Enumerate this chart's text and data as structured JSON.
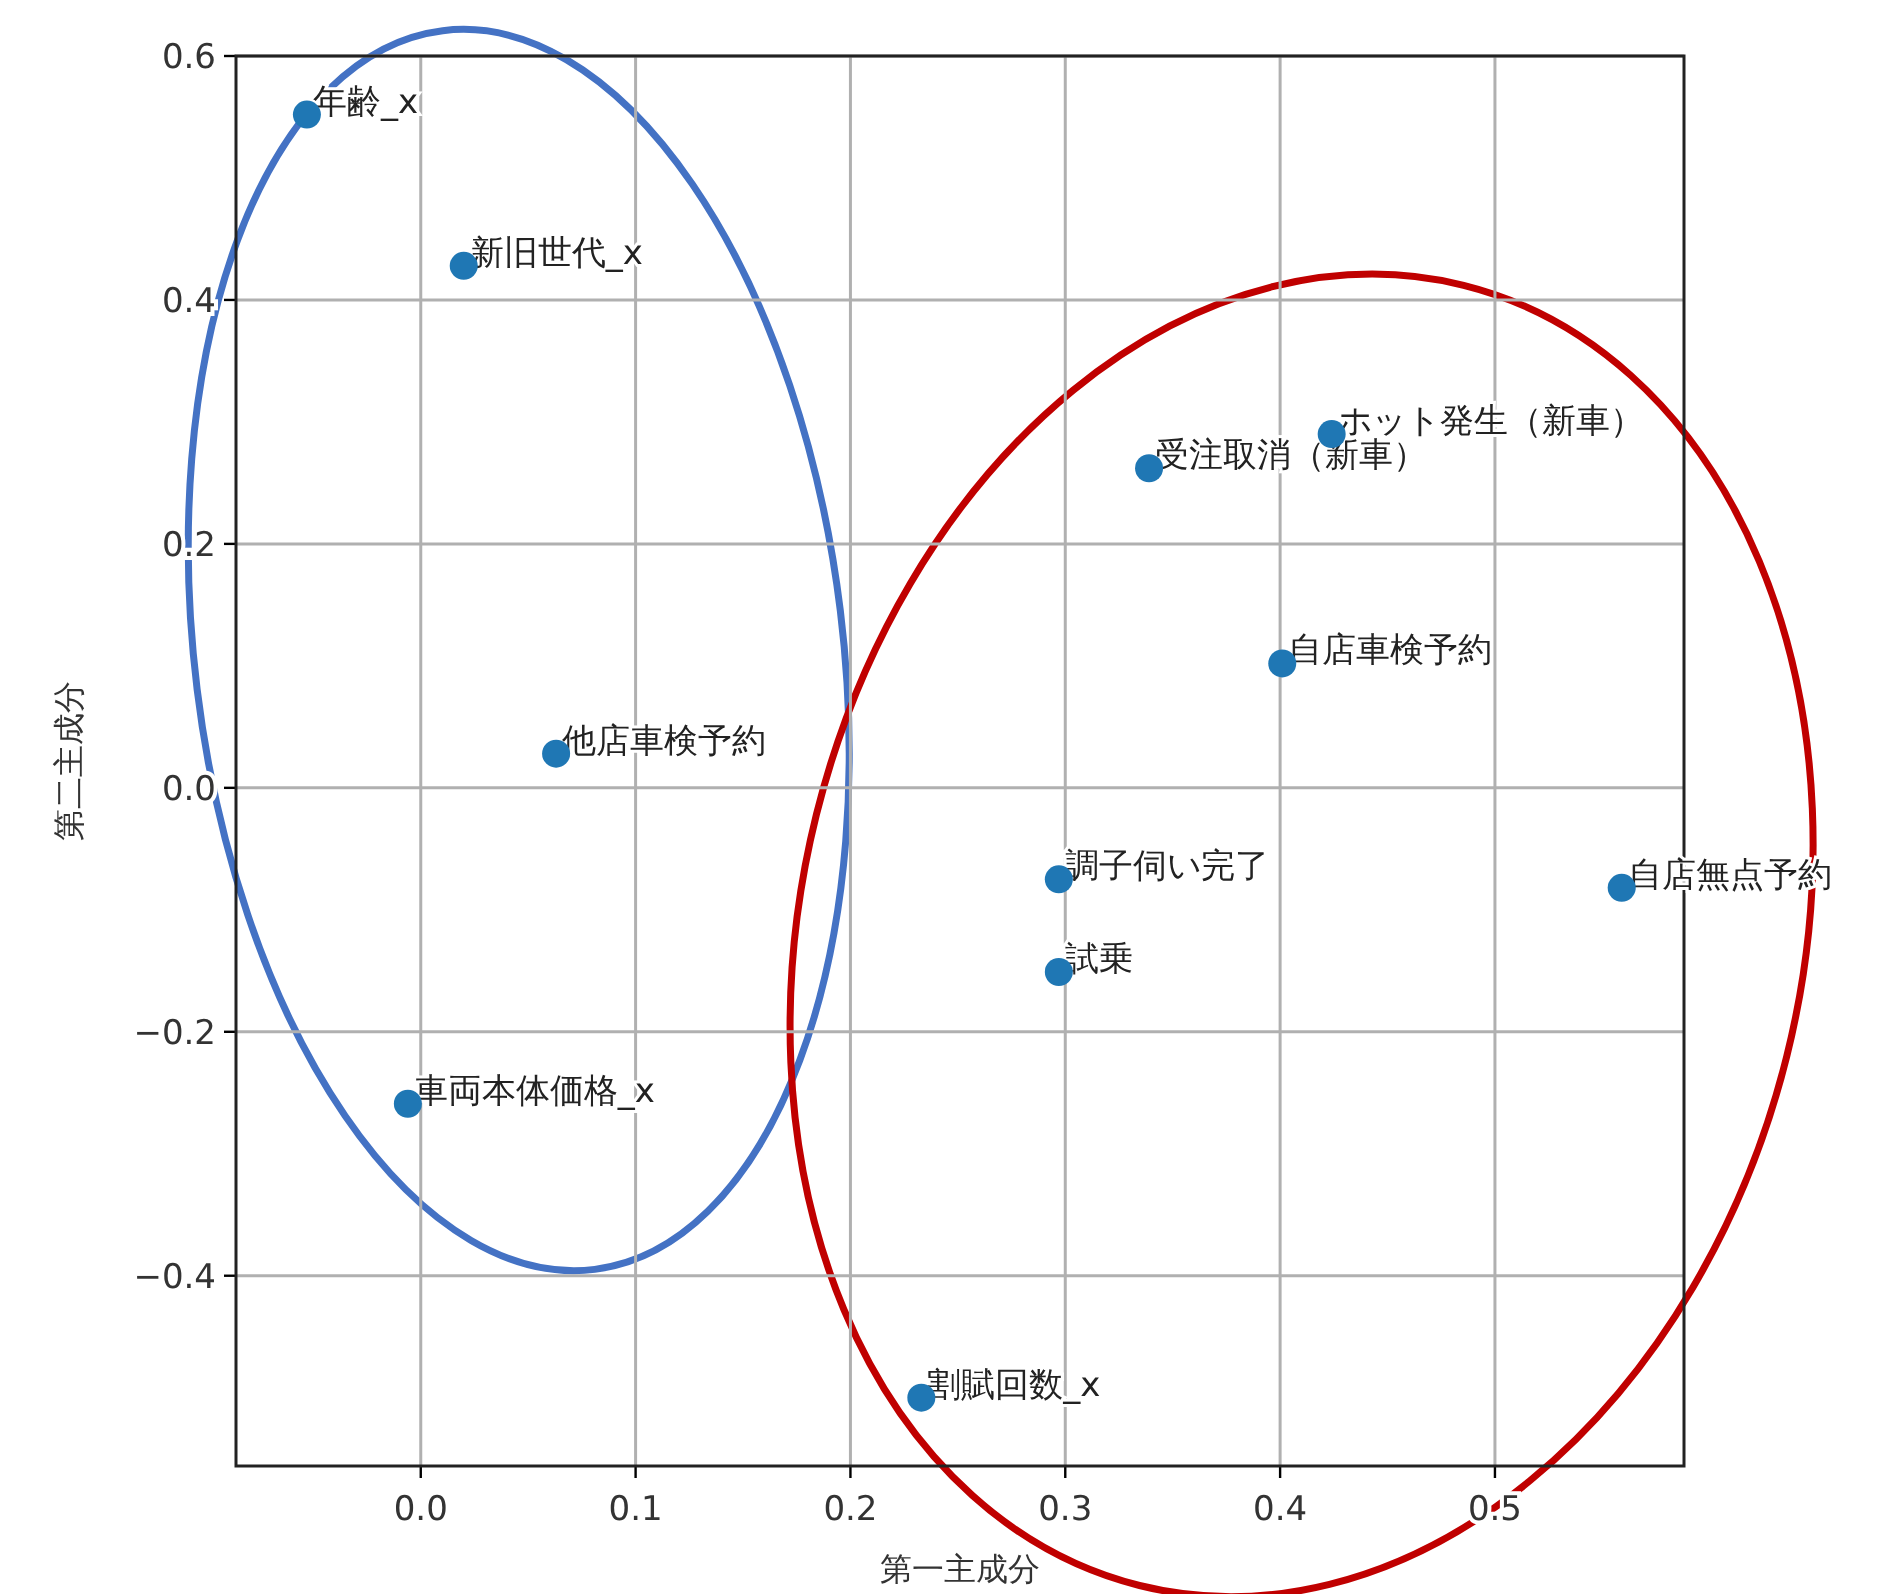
{
  "chart_data": {
    "type": "scatter",
    "xlabel": "第一主成分",
    "ylabel": "第二主成分",
    "xlim": [
      -0.086,
      0.588
    ],
    "ylim": [
      -0.556,
      0.6
    ],
    "xticks": [
      {
        "value": 0,
        "label": "0.0"
      },
      {
        "value": 0.1,
        "label": "0.1"
      },
      {
        "value": 0.2,
        "label": "0.2"
      },
      {
        "value": 0.3,
        "label": "0.3"
      },
      {
        "value": 0.4,
        "label": "0.4"
      },
      {
        "value": 0.5,
        "label": "0.5"
      }
    ],
    "yticks": [
      {
        "value": -0.4,
        "label": "−0.4"
      },
      {
        "value": -0.2,
        "label": "−0.2"
      },
      {
        "value": 0,
        "label": "0.0"
      },
      {
        "value": 0.2,
        "label": "0.2"
      },
      {
        "value": 0.4,
        "label": "0.4"
      },
      {
        "value": 0.6,
        "label": "0.6"
      }
    ],
    "grid": true,
    "marker": "circle",
    "series": [
      {
        "color": "#1f77b4",
        "x": [
          -0.053,
          0.02,
          0.063,
          -0.006,
          0.339,
          0.424,
          0.401,
          0.297,
          0.297,
          0.559,
          0.233
        ],
        "values": [
          0.552,
          0.428,
          0.028,
          -0.259,
          0.262,
          0.29,
          0.102,
          -0.075,
          -0.151,
          -0.082,
          -0.5
        ]
      }
    ],
    "annotations": [
      {
        "text": "年齢_x",
        "x": -0.053,
        "y": 0.552
      },
      {
        "text": "新旧世代_x",
        "x": 0.02,
        "y": 0.428
      },
      {
        "text": "他店車検予約",
        "x": 0.063,
        "y": 0.028
      },
      {
        "text": "車両本体価格_x",
        "x": -0.006,
        "y": -0.259
      },
      {
        "text": "受注取消（新車）",
        "x": 0.339,
        "y": 0.262
      },
      {
        "text": "ホット発生（新車）",
        "x": 0.424,
        "y": 0.29
      },
      {
        "text": "自店車検予約",
        "x": 0.401,
        "y": 0.102
      },
      {
        "text": "調子伺い完了",
        "x": 0.297,
        "y": -0.075
      },
      {
        "text": "試乗",
        "x": 0.297,
        "y": -0.151
      },
      {
        "text": "自店無点予約",
        "x": 0.559,
        "y": -0.082
      },
      {
        "text": "割賦回数_x",
        "x": 0.233,
        "y": -0.5
      }
    ]
  }
}
